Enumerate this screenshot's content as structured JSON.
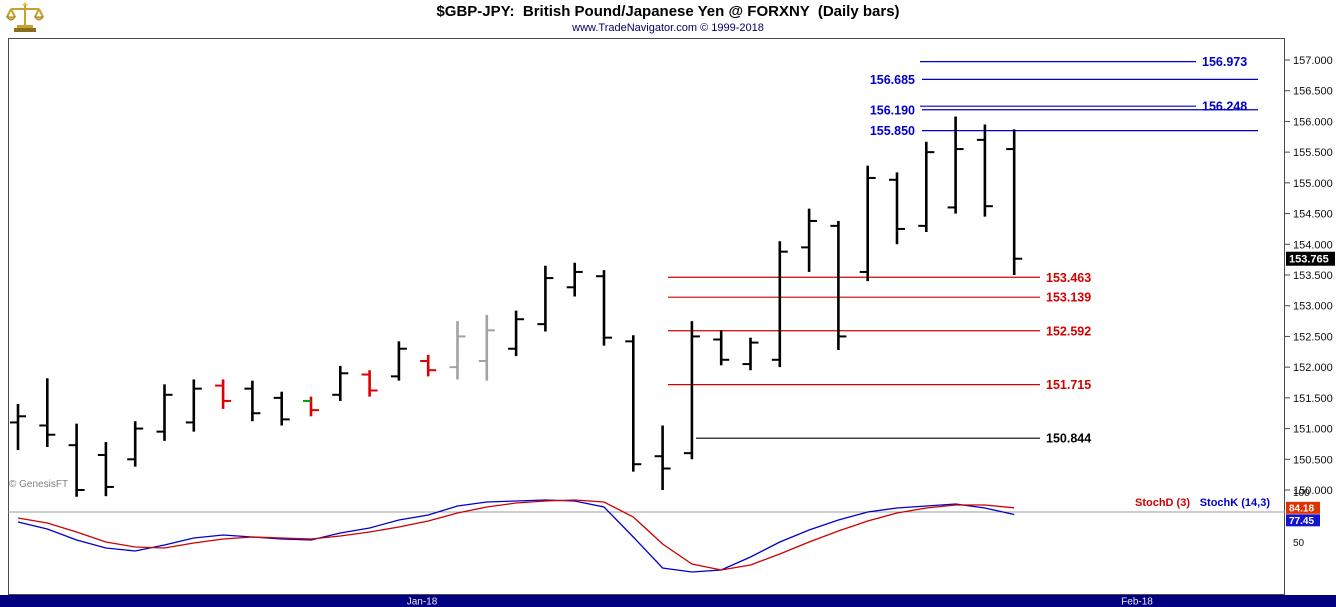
{
  "header": {
    "title": "$GBP-JPY:  British Pound/Japanese Yen @ FORXNY  (Daily bars)",
    "subtitle": "www.TradeNavigator.com © 1999-2018"
  },
  "watermark": "© GenesisFT",
  "colors": {
    "level_blue": "#0000c8",
    "level_red": "#d40000",
    "level_black": "#000000",
    "bar_black": "#000000",
    "bar_red": "#dd0000",
    "bar_gray": "#a2a2a2",
    "green_tick": "#00a000",
    "stoch_k": "#0000cc",
    "stoch_d": "#cc0000",
    "badge_price_bg": "#000000",
    "badge_d_bg": "#e13300",
    "badge_k_bg": "#1414cc",
    "date_bar_bg": "#000080"
  },
  "chart_data": {
    "type": "ohlc-bar+stochastic",
    "title": "$GBP-JPY: British Pound/Japanese Yen @ FORXNY (Daily bars)",
    "price_panel": {
      "y_range": [
        149.8,
        157.45
      ],
      "y_ticks": [
        "157.000",
        "156.500",
        "156.000",
        "155.500",
        "155.000",
        "154.500",
        "154.000",
        "153.500",
        "153.000",
        "152.500",
        "152.000",
        "151.500",
        "151.000",
        "150.500",
        "150.000"
      ],
      "last_price": "153.765",
      "bar_format": [
        "open",
        "high",
        "low",
        "close",
        "color(b=black,r=red,n=gray)"
      ],
      "green_tick_index": 10,
      "bars": [
        [
          151.1,
          151.4,
          150.65,
          151.2,
          "b"
        ],
        [
          151.05,
          151.82,
          150.7,
          150.9,
          "b"
        ],
        [
          150.73,
          151.08,
          149.89,
          150.0,
          "b"
        ],
        [
          150.57,
          150.78,
          149.9,
          150.05,
          "b"
        ],
        [
          150.5,
          151.12,
          150.38,
          151.0,
          "b"
        ],
        [
          150.95,
          151.72,
          150.8,
          151.55,
          "b"
        ],
        [
          151.1,
          151.8,
          150.95,
          151.65,
          "b"
        ],
        [
          151.7,
          151.8,
          151.32,
          151.45,
          "r"
        ],
        [
          151.65,
          151.78,
          151.12,
          151.25,
          "b"
        ],
        [
          151.5,
          151.6,
          151.05,
          151.15,
          "b"
        ],
        [
          151.45,
          151.52,
          151.2,
          151.3,
          "r"
        ],
        [
          151.55,
          152.02,
          151.45,
          151.9,
          "b"
        ],
        [
          151.88,
          151.95,
          151.52,
          151.62,
          "r"
        ],
        [
          151.85,
          152.42,
          151.78,
          152.3,
          "b"
        ],
        [
          152.1,
          152.2,
          151.85,
          151.95,
          "r"
        ],
        [
          152.0,
          152.75,
          151.8,
          152.5,
          "n"
        ],
        [
          152.1,
          152.85,
          151.78,
          152.6,
          "n"
        ],
        [
          152.3,
          152.92,
          152.18,
          152.78,
          "b"
        ],
        [
          152.7,
          153.65,
          152.58,
          153.45,
          "b"
        ],
        [
          153.3,
          153.7,
          153.15,
          153.55,
          "b"
        ],
        [
          153.48,
          153.58,
          152.35,
          152.48,
          "b"
        ],
        [
          152.42,
          152.52,
          150.3,
          150.42,
          "b"
        ],
        [
          150.55,
          151.05,
          150.0,
          150.35,
          "b"
        ],
        [
          150.6,
          152.75,
          150.5,
          152.5,
          "b"
        ],
        [
          152.45,
          152.6,
          152.03,
          152.12,
          "b"
        ],
        [
          152.05,
          152.48,
          151.95,
          152.4,
          "b"
        ],
        [
          152.12,
          154.05,
          152.0,
          153.88,
          "b"
        ],
        [
          153.95,
          154.58,
          153.55,
          154.38,
          "b"
        ],
        [
          154.3,
          154.38,
          152.28,
          152.5,
          "b"
        ],
        [
          153.55,
          155.28,
          153.4,
          155.08,
          "b"
        ],
        [
          155.05,
          155.17,
          154.0,
          154.25,
          "b"
        ],
        [
          154.3,
          155.67,
          154.2,
          155.5,
          "b"
        ],
        [
          154.6,
          156.08,
          154.5,
          155.55,
          "b"
        ],
        [
          155.7,
          155.95,
          154.45,
          154.62,
          "b"
        ],
        [
          155.55,
          155.87,
          153.5,
          153.765,
          "b"
        ]
      ],
      "levels": [
        {
          "label": "156.973",
          "value": 156.973,
          "color": "blue",
          "side": "right"
        },
        {
          "label": "156.685",
          "value": 156.685,
          "color": "blue",
          "side": "left"
        },
        {
          "label": "156.248",
          "value": 156.248,
          "color": "blue",
          "side": "right"
        },
        {
          "label": "156.190",
          "value": 156.19,
          "color": "blue",
          "side": "left"
        },
        {
          "label": "155.850",
          "value": 155.85,
          "color": "blue",
          "side": "left"
        },
        {
          "label": "153.463",
          "value": 153.463,
          "color": "red",
          "side": "right"
        },
        {
          "label": "153.139",
          "value": 153.139,
          "color": "red",
          "side": "right"
        },
        {
          "label": "152.592",
          "value": 152.592,
          "color": "red",
          "side": "right"
        },
        {
          "label": "151.715",
          "value": 151.715,
          "color": "red",
          "side": "right"
        },
        {
          "label": "150.844",
          "value": 150.844,
          "color": "black",
          "side": "right"
        }
      ]
    },
    "stoch_panel": {
      "d_label": "StochD (3)",
      "k_label": "StochK (14,3)",
      "d_last": "84.18",
      "k_last": "77.45",
      "y_ticks": [
        "100",
        "50"
      ],
      "reference_line": 80,
      "k": [
        70,
        63,
        52,
        44,
        41,
        47,
        54,
        57,
        55,
        53,
        52,
        59,
        64,
        72,
        77,
        86,
        90,
        91,
        92,
        91,
        85,
        55,
        24,
        20,
        22,
        35,
        50,
        62,
        72,
        80,
        84,
        86,
        88,
        84,
        77.45
      ],
      "d": [
        74,
        69,
        60,
        50,
        45,
        44,
        49,
        53,
        55,
        54,
        53,
        56,
        60,
        65,
        71,
        79,
        85,
        89,
        91,
        92,
        90,
        75,
        48,
        28,
        22,
        27,
        38,
        50,
        61,
        71,
        79,
        84,
        87,
        87,
        84.18
      ]
    },
    "x_ticks": [
      {
        "label": "Jan-18",
        "x": 422
      },
      {
        "label": "Feb-18",
        "x": 1137
      }
    ]
  }
}
